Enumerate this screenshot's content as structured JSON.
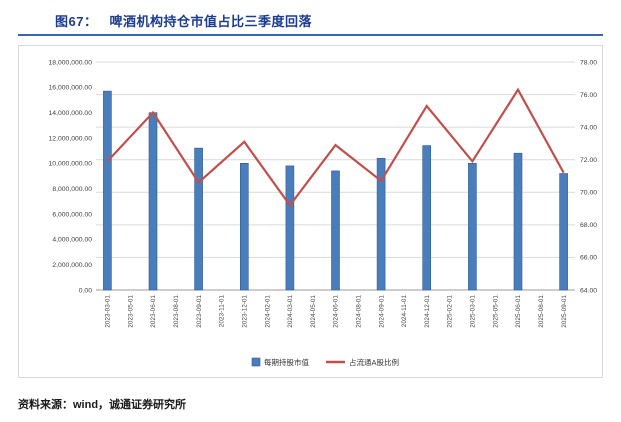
{
  "header": {
    "figure_label": "图67：",
    "title": "啤酒机构持仓市值占比三季度回落"
  },
  "footer": {
    "source": "资料来源：wind，诚通证券研究所"
  },
  "colors": {
    "title": "#1A3C8F",
    "rule": "#3A66B0",
    "chart_border": "#D8D8D8",
    "footer_text": "#1A1A1A"
  },
  "chart_data": {
    "type": "bar",
    "subtype": "bar+line combo, dual axis",
    "title": "啤酒机构持仓市值占比三季度回落",
    "categories": [
      "2023-03-01",
      "2023-05-01",
      "2023-06-01",
      "2023-08-01",
      "2023-09-01",
      "2023-11-01",
      "2023-12-01",
      "2024-02-01",
      "2024-03-01",
      "2024-05-01",
      "2024-06-01",
      "2024-08-01",
      "2024-09-01",
      "2024-11-01",
      "2024-12-01",
      "2025-02-01",
      "2025-03-01",
      "2025-05-01",
      "2025-06-01",
      "2025-08-01",
      "2025-09-01"
    ],
    "bar_category_indices": [
      0,
      2,
      4,
      6,
      8,
      10,
      12,
      14,
      16,
      18,
      20
    ],
    "series": [
      {
        "name": "每期持股市值",
        "type": "bar",
        "axis": "left",
        "color": "#4A7EBB",
        "border": "#2E5B94",
        "values": [
          15700000,
          14000000,
          11200000,
          10000000,
          9800000,
          9400000,
          10400000,
          11400000,
          10000000,
          10800000,
          9200000
        ]
      },
      {
        "name": "占流通A股比例",
        "type": "line",
        "axis": "right",
        "color": "#C0504D",
        "values": [
          71.9,
          74.9,
          70.6,
          73.1,
          69.2,
          72.9,
          70.7,
          75.3,
          71.9,
          76.3,
          71.2
        ]
      }
    ],
    "left_axis": {
      "min": 0,
      "max": 18000000,
      "step": 2000000,
      "tick_values": [
        0,
        2000000,
        4000000,
        6000000,
        8000000,
        10000000,
        12000000,
        14000000,
        16000000,
        18000000
      ],
      "tick_labels": [
        "0.00",
        "2,000,000.00",
        "4,000,000.00",
        "6,000,000.00",
        "8,000,000.00",
        "10,000,000.00",
        "12,000,000.00",
        "14,000,000.00",
        "16,000,000.00",
        "18,000,000.00"
      ]
    },
    "right_axis": {
      "min": 64,
      "max": 78,
      "step": 2,
      "tick_values": [
        64,
        66,
        68,
        70,
        72,
        74,
        76,
        78
      ],
      "tick_labels": [
        "64.00",
        "66.00",
        "68.00",
        "70.00",
        "72.00",
        "74.00",
        "76.00",
        "78.00"
      ]
    },
    "legend": [
      "每期持股市值",
      "占流通A股比例"
    ],
    "grid": "horizontal, light gray",
    "legend_position": "bottom-center inside plot box",
    "colors": {
      "grid": "#D9D9D9",
      "axis_line": "#9B9B9B",
      "text": "#404040",
      "legend_text": "#333333"
    }
  }
}
